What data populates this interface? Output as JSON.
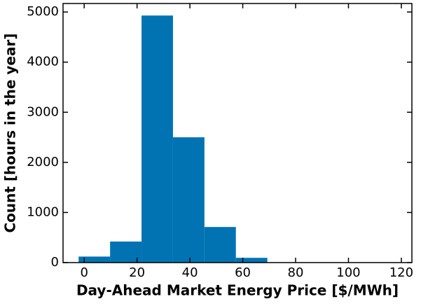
{
  "chart_data": {
    "type": "histogram",
    "x_label": "Day-Ahead Market Energy Price [$/MWh]",
    "y_label": "Count [hours in the year]",
    "bins": [
      -2.1,
      9.8,
      21.7,
      33.6,
      45.5,
      57.4,
      69.3,
      81.2,
      93.1,
      105.0,
      116.9
    ],
    "values": [
      120,
      420,
      4930,
      2500,
      710,
      95,
      3,
      1,
      0,
      1
    ],
    "color": "#0173b2",
    "xlim": [
      -8,
      124
    ],
    "ylim": [
      0,
      5170
    ],
    "xticks": [
      0,
      20,
      40,
      60,
      80,
      100,
      120
    ],
    "yticks": [
      0,
      1000,
      2000,
      3000,
      4000,
      5000
    ]
  }
}
